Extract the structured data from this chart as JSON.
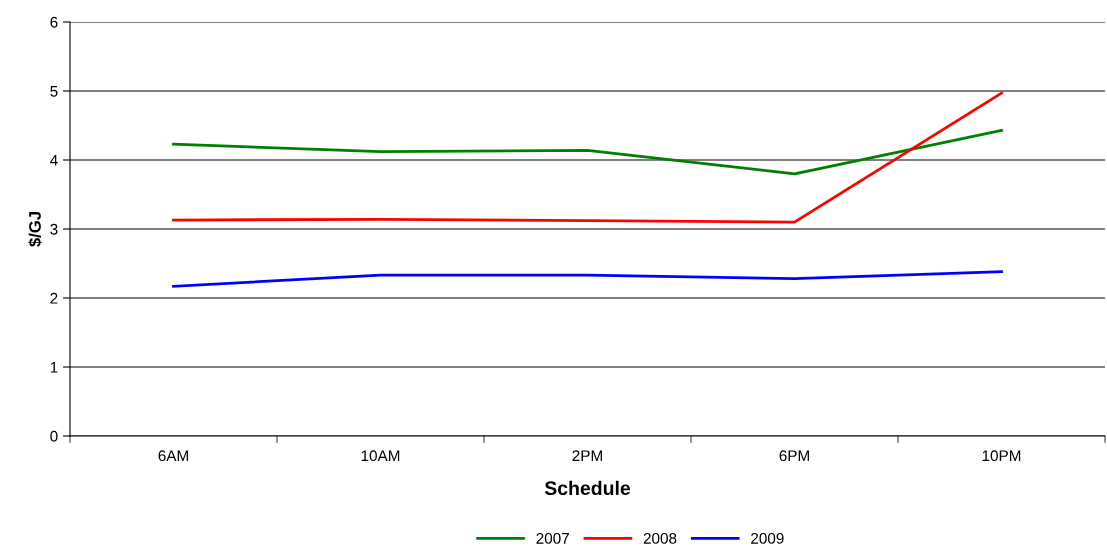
{
  "chart_data": {
    "type": "line",
    "xlabel": "Schedule",
    "ylabel": "$/GJ",
    "categories": [
      "6AM",
      "10AM",
      "2PM",
      "6PM",
      "10PM"
    ],
    "series": [
      {
        "name": "2007",
        "color": "#008000",
        "values": [
          4.23,
          4.12,
          4.14,
          3.8,
          4.43
        ]
      },
      {
        "name": "2008",
        "color": "#ff0000",
        "values": [
          3.13,
          3.14,
          3.12,
          3.1,
          4.97
        ]
      },
      {
        "name": "2009",
        "color": "#0000ff",
        "values": [
          2.17,
          2.33,
          2.33,
          2.28,
          2.38
        ]
      }
    ],
    "ylim": [
      0,
      6
    ],
    "yticks": [
      0,
      1,
      2,
      3,
      4,
      5,
      6
    ],
    "grid": "y",
    "legend": "bottom",
    "marker": "none",
    "line_style": "solid"
  }
}
